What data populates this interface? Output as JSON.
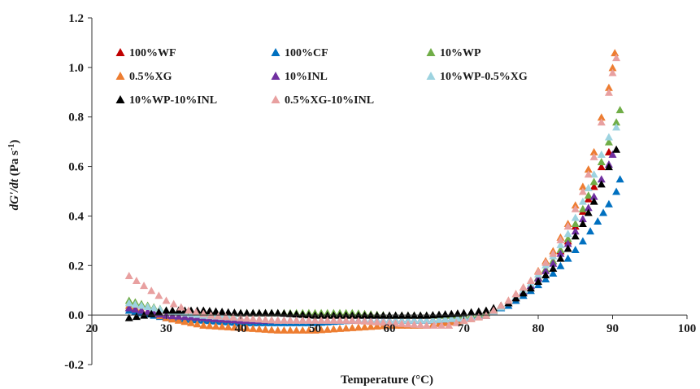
{
  "chart_data": {
    "type": "scatter",
    "title": "",
    "xlabel": "Temperature (°C)",
    "ylabel": {
      "prefix": "dG'/dt",
      "unit_open": " (Pa s",
      "unit_sup": "-1",
      "unit_close": ")"
    },
    "xlim": [
      20,
      100
    ],
    "ylim": [
      -0.2,
      1.2
    ],
    "x_ticks": [
      20,
      30,
      40,
      50,
      60,
      70,
      80,
      90,
      100
    ],
    "y_ticks": [
      -0.2,
      0.0,
      0.2,
      0.4,
      0.6,
      0.8,
      1.0,
      1.2
    ],
    "y_tick_labels": [
      "-0.2",
      "0.0",
      "0.2",
      "0.4",
      "0.6",
      "0.8",
      "1.0",
      "1.2"
    ],
    "x_tick_labels": [
      "20",
      "30",
      "40",
      "50",
      "60",
      "70",
      "80",
      "90",
      "100"
    ],
    "grid": false,
    "legend_position": "top-left",
    "marker": "triangle",
    "series": [
      {
        "name": "100%WF",
        "color": "#C00000",
        "points": [
          [
            25,
            0.03
          ],
          [
            30,
            0.0
          ],
          [
            35,
            -0.01
          ],
          [
            40,
            -0.02
          ],
          [
            45,
            -0.02
          ],
          [
            50,
            -0.02
          ],
          [
            55,
            -0.02
          ],
          [
            60,
            -0.02
          ],
          [
            65,
            -0.02
          ],
          [
            70,
            -0.01
          ],
          [
            73,
            0.0
          ],
          [
            76,
            0.05
          ],
          [
            79,
            0.12
          ],
          [
            82,
            0.22
          ],
          [
            84,
            0.3
          ],
          [
            86,
            0.42
          ],
          [
            87.5,
            0.52
          ],
          [
            88.5,
            0.6
          ],
          [
            89.5,
            0.66
          ]
        ]
      },
      {
        "name": "100%CF",
        "color": "#0070C0",
        "points": [
          [
            25,
            0.02
          ],
          [
            30,
            -0.01
          ],
          [
            35,
            -0.02
          ],
          [
            40,
            -0.03
          ],
          [
            45,
            -0.03
          ],
          [
            50,
            -0.03
          ],
          [
            55,
            -0.02
          ],
          [
            60,
            -0.02
          ],
          [
            65,
            -0.02
          ],
          [
            70,
            -0.01
          ],
          [
            73,
            0.01
          ],
          [
            76,
            0.04
          ],
          [
            79,
            0.1
          ],
          [
            82,
            0.17
          ],
          [
            84,
            0.23
          ],
          [
            86,
            0.3
          ],
          [
            88,
            0.38
          ],
          [
            89.5,
            0.45
          ],
          [
            90.5,
            0.5
          ],
          [
            91,
            0.55
          ]
        ]
      },
      {
        "name": "10%WP",
        "color": "#70AD47",
        "points": [
          [
            25,
            0.06
          ],
          [
            30,
            0.02
          ],
          [
            35,
            0.01
          ],
          [
            40,
            0.01
          ],
          [
            45,
            0.01
          ],
          [
            50,
            0.01
          ],
          [
            55,
            0.01
          ],
          [
            60,
            0.0
          ],
          [
            65,
            0.0
          ],
          [
            70,
            0.0
          ],
          [
            73,
            0.01
          ],
          [
            76,
            0.05
          ],
          [
            79,
            0.12
          ],
          [
            82,
            0.22
          ],
          [
            84,
            0.31
          ],
          [
            86,
            0.43
          ],
          [
            87.5,
            0.54
          ],
          [
            88.5,
            0.62
          ],
          [
            89.5,
            0.7
          ],
          [
            90.5,
            0.78
          ],
          [
            91,
            0.83
          ]
        ]
      },
      {
        "name": "0.5%XG",
        "color": "#ED7D31",
        "points": [
          [
            25,
            0.04
          ],
          [
            30,
            -0.01
          ],
          [
            35,
            -0.04
          ],
          [
            40,
            -0.05
          ],
          [
            45,
            -0.06
          ],
          [
            50,
            -0.06
          ],
          [
            55,
            -0.05
          ],
          [
            60,
            -0.04
          ],
          [
            65,
            -0.04
          ],
          [
            70,
            -0.02
          ],
          [
            73,
            0.0
          ],
          [
            76,
            0.06
          ],
          [
            79,
            0.14
          ],
          [
            82,
            0.26
          ],
          [
            84,
            0.37
          ],
          [
            86,
            0.52
          ],
          [
            87.5,
            0.66
          ],
          [
            88.5,
            0.8
          ],
          [
            89.5,
            0.92
          ],
          [
            90,
            1.0
          ],
          [
            90.3,
            1.06
          ]
        ]
      },
      {
        "name": "10%INL",
        "color": "#7030A0",
        "points": [
          [
            25,
            0.03
          ],
          [
            30,
            0.0
          ],
          [
            35,
            -0.01
          ],
          [
            40,
            -0.02
          ],
          [
            45,
            -0.02
          ],
          [
            50,
            -0.02
          ],
          [
            55,
            -0.02
          ],
          [
            60,
            -0.02
          ],
          [
            65,
            -0.02
          ],
          [
            70,
            -0.01
          ],
          [
            73,
            0.0
          ],
          [
            76,
            0.05
          ],
          [
            79,
            0.12
          ],
          [
            82,
            0.21
          ],
          [
            84,
            0.29
          ],
          [
            86,
            0.39
          ],
          [
            87.5,
            0.48
          ],
          [
            88.5,
            0.55
          ],
          [
            89.5,
            0.61
          ],
          [
            90,
            0.65
          ]
        ]
      },
      {
        "name": "10%WP-0.5%XG",
        "color": "#9DD3E0",
        "points": [
          [
            25,
            0.05
          ],
          [
            30,
            0.02
          ],
          [
            35,
            0.0
          ],
          [
            40,
            -0.01
          ],
          [
            45,
            -0.02
          ],
          [
            50,
            -0.02
          ],
          [
            55,
            -0.02
          ],
          [
            60,
            -0.02
          ],
          [
            65,
            -0.02
          ],
          [
            70,
            -0.01
          ],
          [
            73,
            0.0
          ],
          [
            76,
            0.05
          ],
          [
            79,
            0.13
          ],
          [
            82,
            0.24
          ],
          [
            84,
            0.33
          ],
          [
            86,
            0.46
          ],
          [
            87.5,
            0.57
          ],
          [
            88.5,
            0.65
          ],
          [
            89.5,
            0.72
          ],
          [
            90.5,
            0.76
          ]
        ]
      },
      {
        "name": "10%WP-10%INL",
        "color": "#000000",
        "points": [
          [
            25,
            -0.01
          ],
          [
            27,
            0.0
          ],
          [
            30,
            0.02
          ],
          [
            35,
            0.02
          ],
          [
            40,
            0.01
          ],
          [
            45,
            0.01
          ],
          [
            50,
            0.0
          ],
          [
            55,
            0.0
          ],
          [
            60,
            0.0
          ],
          [
            65,
            0.0
          ],
          [
            70,
            0.01
          ],
          [
            73,
            0.02
          ],
          [
            76,
            0.05
          ],
          [
            79,
            0.11
          ],
          [
            82,
            0.19
          ],
          [
            84,
            0.27
          ],
          [
            86,
            0.37
          ],
          [
            87.5,
            0.46
          ],
          [
            88.5,
            0.53
          ],
          [
            89.5,
            0.6
          ],
          [
            90.5,
            0.67
          ]
        ]
      },
      {
        "name": "0.5%XG-10%INL",
        "color": "#E8A0A0",
        "points": [
          [
            25,
            0.16
          ],
          [
            27,
            0.12
          ],
          [
            30,
            0.06
          ],
          [
            33,
            0.02
          ],
          [
            36,
            0.0
          ],
          [
            40,
            -0.01
          ],
          [
            45,
            -0.02
          ],
          [
            50,
            -0.02
          ],
          [
            55,
            -0.02
          ],
          [
            60,
            -0.03
          ],
          [
            65,
            -0.04
          ],
          [
            68,
            -0.04
          ],
          [
            70,
            -0.02
          ],
          [
            73,
            0.0
          ],
          [
            76,
            0.06
          ],
          [
            79,
            0.14
          ],
          [
            82,
            0.25
          ],
          [
            84,
            0.36
          ],
          [
            86,
            0.5
          ],
          [
            87.5,
            0.64
          ],
          [
            88.5,
            0.78
          ],
          [
            89.5,
            0.9
          ],
          [
            90,
            0.98
          ],
          [
            90.5,
            1.04
          ]
        ]
      }
    ]
  }
}
